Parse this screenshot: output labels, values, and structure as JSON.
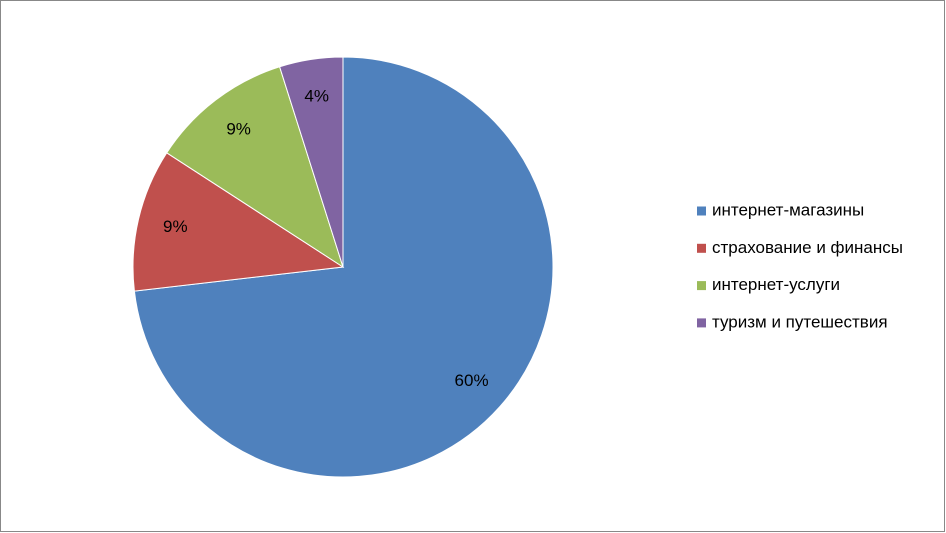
{
  "chart_data": {
    "type": "pie",
    "categories": [
      "интернет-магазины",
      "страхование и финансы",
      "интернет-услуги",
      "туризм и путешествия"
    ],
    "values": [
      60,
      9,
      9,
      4
    ],
    "value_labels": [
      "60%",
      "9%",
      "9%",
      "4%"
    ],
    "colors": [
      "#4f81bd",
      "#c0504d",
      "#9bbb59",
      "#8064a2"
    ],
    "legend": "right"
  }
}
